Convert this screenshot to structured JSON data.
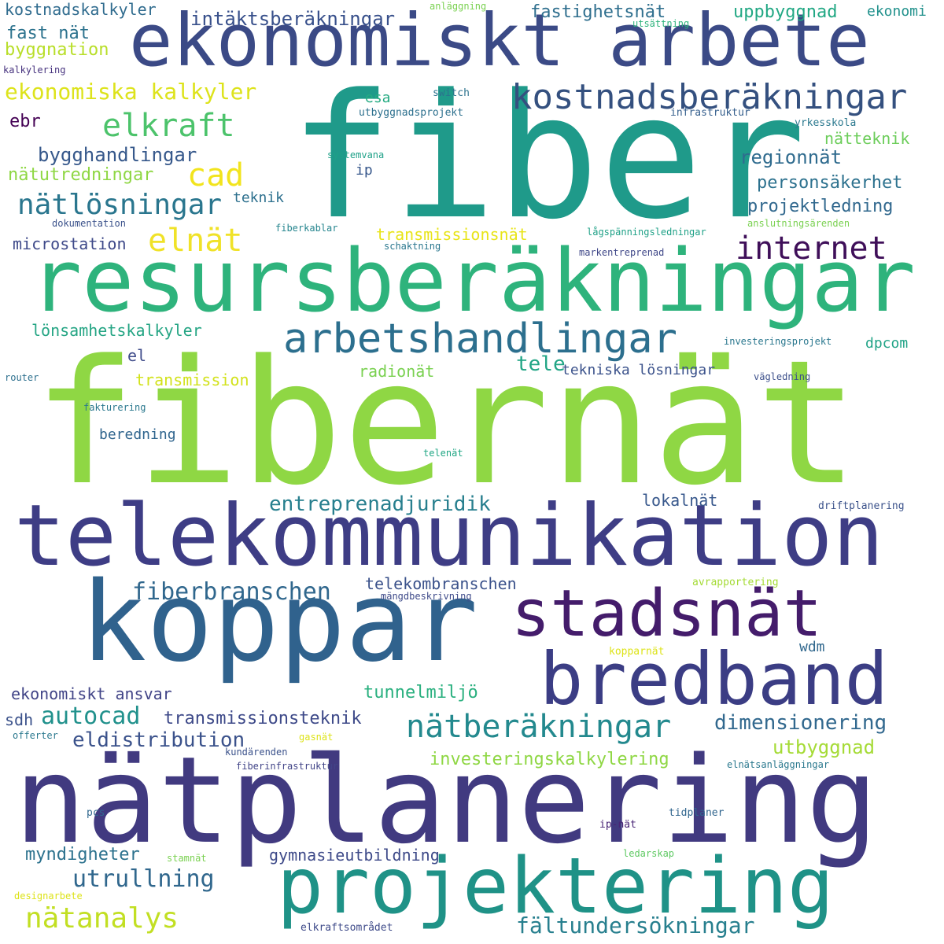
{
  "palette": {
    "purple_dark": "#440154",
    "indigo": "#3b3d84",
    "blue": "#30628d",
    "teal_blue": "#26808e",
    "teal": "#1f9a8a",
    "green_teal": "#2eb37c",
    "green": "#5ac864",
    "lime": "#9cd63a",
    "yellow_green": "#c2df23",
    "yellow": "#f2e41d"
  },
  "words": [
    {
      "text": "fiber",
      "color": "#1f9a8a"
    },
    {
      "text": "fibernät",
      "color": "#8fd744"
    },
    {
      "text": "resursberäkningar",
      "color": "#2eb37c"
    },
    {
      "text": "ekonomiskt arbete",
      "color": "#3b4a86"
    },
    {
      "text": "telekommunikation",
      "color": "#3e3d85"
    },
    {
      "text": "koppar",
      "color": "#30628d"
    },
    {
      "text": "stadsnät",
      "color": "#441c6b"
    },
    {
      "text": "bredband",
      "color": "#3b3d84"
    },
    {
      "text": "nätplanering",
      "color": "#413a80"
    },
    {
      "text": "projektering",
      "color": "#1f9287"
    },
    {
      "text": "kostnadsberäkningar",
      "color": "#34507f"
    },
    {
      "text": "arbetshandlingar",
      "color": "#2c6f8e"
    },
    {
      "text": "internet",
      "color": "#3f0f59"
    },
    {
      "text": "elkraft",
      "color": "#4cc36b"
    },
    {
      "text": "cad",
      "color": "#f2e41d"
    },
    {
      "text": "elnät",
      "color": "#f0e228"
    },
    {
      "text": "nätlösningar",
      "color": "#2a768e"
    },
    {
      "text": "bygghandlingar",
      "color": "#36588b"
    },
    {
      "text": "ekonomiska kalkyler",
      "color": "#dde31c"
    },
    {
      "text": "intäktsberäkningar",
      "color": "#38508b"
    },
    {
      "text": "kostnadskalkyler",
      "color": "#2f6b8e"
    },
    {
      "text": "fast nät",
      "color": "#2d738e"
    },
    {
      "text": "byggnation",
      "color": "#b8de29"
    },
    {
      "text": "fastighetsnät",
      "color": "#2f6f8e"
    },
    {
      "text": "uppbyggnad",
      "color": "#22a884"
    },
    {
      "text": "ekonomi",
      "color": "#21918c"
    },
    {
      "text": "anläggning",
      "color": "#7ad151"
    },
    {
      "text": "utsättning",
      "color": "#2eb37c"
    },
    {
      "text": "kalkylering",
      "color": "#46327e"
    },
    {
      "text": "esa",
      "color": "#25ab82"
    },
    {
      "text": "switch",
      "color": "#2c728e"
    },
    {
      "text": "utbyggnadsprojekt",
      "color": "#2d708e"
    },
    {
      "text": "infrastruktur",
      "color": "#355f8d"
    },
    {
      "text": "ebr",
      "color": "#440154"
    },
    {
      "text": "nätteknik",
      "color": "#6ccd5a"
    },
    {
      "text": "yrkesskola",
      "color": "#2a788e"
    },
    {
      "text": "regionnät",
      "color": "#2f6b8e"
    },
    {
      "text": "systemvana",
      "color": "#1fa188"
    },
    {
      "text": "ip",
      "color": "#38588c"
    },
    {
      "text": "personsäkerhet",
      "color": "#2c718e"
    },
    {
      "text": "nätutredningar",
      "color": "#8fd744"
    },
    {
      "text": "teknik",
      "color": "#2d708e"
    },
    {
      "text": "projektledning",
      "color": "#31688e"
    },
    {
      "text": "dokumentation",
      "color": "#3b528b"
    },
    {
      "text": "fiberkablar",
      "color": "#25858e"
    },
    {
      "text": "lågspänningsledningar",
      "color": "#1fa187"
    },
    {
      "text": "anslutningsärenden",
      "color": "#7ad151"
    },
    {
      "text": "microstation",
      "color": "#3e4989"
    },
    {
      "text": "transmissionsnät",
      "color": "#e8e419"
    },
    {
      "text": "schaktning",
      "color": "#2a778e"
    },
    {
      "text": "markentreprenad",
      "color": "#3f4788"
    },
    {
      "text": "lönsamhetskalkyler",
      "color": "#25a584"
    },
    {
      "text": "investeringsprojekt",
      "color": "#2a778e"
    },
    {
      "text": "dpcom",
      "color": "#20a386"
    },
    {
      "text": "el",
      "color": "#3e4a89"
    },
    {
      "text": "tele",
      "color": "#21a585"
    },
    {
      "text": "tekniska lösningar",
      "color": "#3b528b"
    },
    {
      "text": "radionät",
      "color": "#7ad151"
    },
    {
      "text": "router",
      "color": "#2d708e"
    },
    {
      "text": "transmission",
      "color": "#d2e21b"
    },
    {
      "text": "vägledning",
      "color": "#3c4f8a"
    },
    {
      "text": "fakturering",
      "color": "#2a788e"
    },
    {
      "text": "beredning",
      "color": "#30658e"
    },
    {
      "text": "telenät",
      "color": "#22a785"
    },
    {
      "text": "entreprenadjuridik",
      "color": "#277f8e"
    },
    {
      "text": "lokalnät",
      "color": "#38588c"
    },
    {
      "text": "driftplanering",
      "color": "#3b528b"
    },
    {
      "text": "fiberbranschen",
      "color": "#30678d"
    },
    {
      "text": "telekombranschen",
      "color": "#3b528b"
    },
    {
      "text": "avrapportering",
      "color": "#a5db36"
    },
    {
      "text": "mängdbeskrivning",
      "color": "#3e4a89"
    },
    {
      "text": "wdm",
      "color": "#31688e"
    },
    {
      "text": "kopparnät",
      "color": "#dde318"
    },
    {
      "text": "ekonomiskt ansvar",
      "color": "#414487"
    },
    {
      "text": "tunnelmiljö",
      "color": "#2ab07f"
    },
    {
      "text": "autocad",
      "color": "#21918c"
    },
    {
      "text": "sdh",
      "color": "#3b528b"
    },
    {
      "text": "transmissionsteknik",
      "color": "#3e4a89"
    },
    {
      "text": "dimensionering",
      "color": "#31688e"
    },
    {
      "text": "nätberäkningar",
      "color": "#23898e"
    },
    {
      "text": "eldistribution",
      "color": "#3b528b"
    },
    {
      "text": "offerter",
      "color": "#2a788e"
    },
    {
      "text": "gasnät",
      "color": "#dde318"
    },
    {
      "text": "kundärenden",
      "color": "#3b528b"
    },
    {
      "text": "utbyggnad",
      "color": "#a5db36"
    },
    {
      "text": "investeringskalkylering",
      "color": "#8fd744"
    },
    {
      "text": "fiberinfrastruktur",
      "color": "#414487"
    },
    {
      "text": "elnätsanläggningar",
      "color": "#2a788e"
    },
    {
      "text": "pcs",
      "color": "#31688e"
    },
    {
      "text": "tidplaner",
      "color": "#30658e"
    },
    {
      "text": "ip-nät",
      "color": "#482475"
    },
    {
      "text": "myndigheter",
      "color": "#2c728e"
    },
    {
      "text": "gymnasieutbildning",
      "color": "#3e4a89"
    },
    {
      "text": "stamnät",
      "color": "#7ad151"
    },
    {
      "text": "ledarskap",
      "color": "#5ec962"
    },
    {
      "text": "utrullning",
      "color": "#30678d"
    },
    {
      "text": "designarbete",
      "color": "#dde318"
    },
    {
      "text": "nätanalys",
      "color": "#c2df23"
    },
    {
      "text": "fältundersökningar",
      "color": "#277f8e"
    },
    {
      "text": "elkraftsområdet",
      "color": "#3e4a89"
    }
  ]
}
